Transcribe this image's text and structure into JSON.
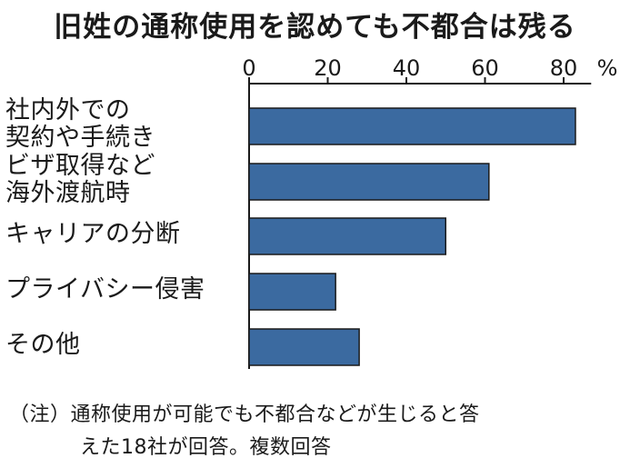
{
  "chart_data": {
    "type": "bar",
    "orientation": "horizontal",
    "title": "旧姓の通称使用を認めても不都合は残る",
    "categories": [
      "社内外での\n契約や手続き",
      "ビザ取得など\n海外渡航時",
      "キャリアの分断",
      "プライバシー侵害",
      "その他"
    ],
    "values": [
      83,
      61,
      50,
      22,
      28
    ],
    "xlim": [
      0,
      87
    ],
    "xticks": [
      "0",
      "20",
      "40",
      "60",
      "80"
    ],
    "unit": "%",
    "grid": false,
    "bar_color": "#3b6aa0",
    "bar_edge_color": "#1a1a1a"
  },
  "notes": {
    "line1": "（注）通称使用が可能でも不都合などが生じると答",
    "line2": "えた18社が回答。複数回答"
  }
}
